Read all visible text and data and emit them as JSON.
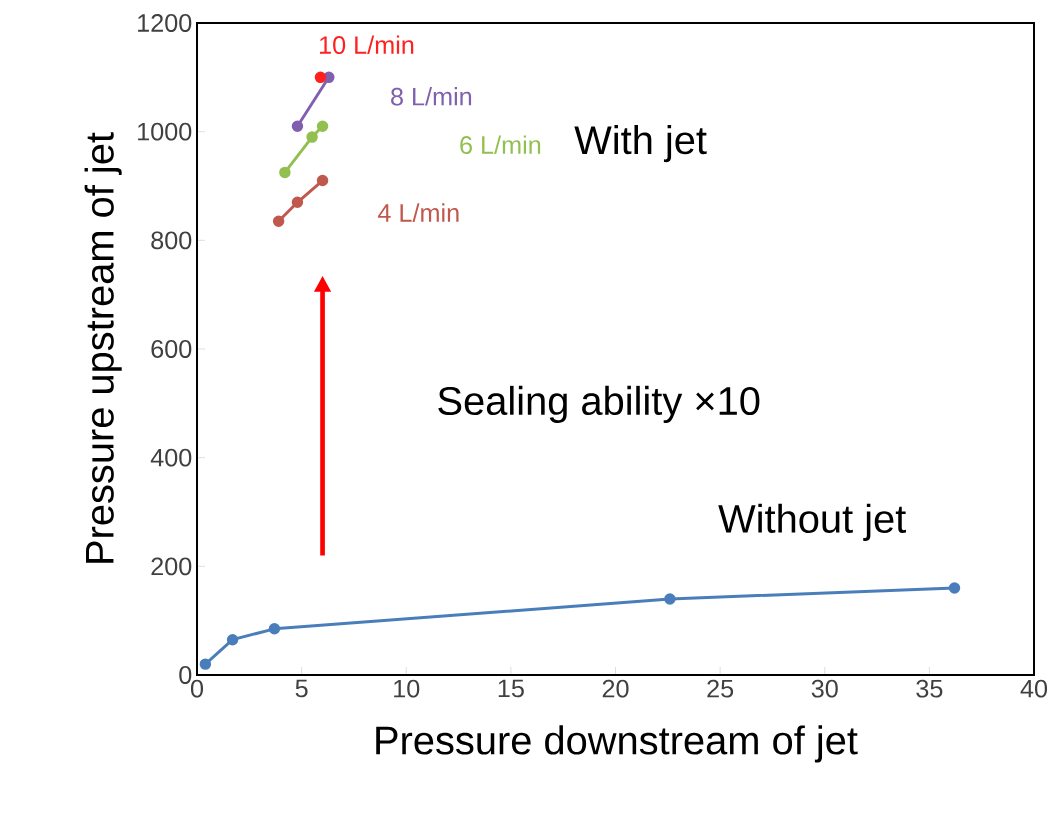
{
  "chart_data": {
    "type": "line",
    "xlabel": "Pressure downstream of jet",
    "ylabel": "Pressure upstream of jet",
    "xlim": [
      0,
      40
    ],
    "ylim": [
      0,
      1200
    ],
    "xticks": [
      0,
      5,
      10,
      15,
      20,
      25,
      30,
      35,
      40
    ],
    "yticks": [
      0,
      200,
      400,
      600,
      800,
      1000,
      1200
    ],
    "marker": "circle",
    "line_style": "solid",
    "grid": false,
    "annotations": [
      "With jet",
      "Sealing ability ×10"
    ],
    "series": [
      {
        "name": "Without jet",
        "color": "#4a7ebb",
        "x": [
          0.4,
          1.7,
          3.7,
          22.6,
          36.2
        ],
        "values": [
          20,
          65,
          85,
          140,
          160
        ]
      },
      {
        "name": "4 L/min",
        "color": "#c0584d",
        "x": [
          3.9,
          4.8,
          6.0
        ],
        "values": [
          835,
          870,
          910
        ]
      },
      {
        "name": "6 L/min",
        "color": "#92c050",
        "x": [
          4.2,
          5.5,
          6.0
        ],
        "values": [
          925,
          990,
          1010
        ]
      },
      {
        "name": "8 L/min",
        "color": "#7f5fae",
        "x": [
          4.8,
          6.3
        ],
        "values": [
          1010,
          1100
        ]
      },
      {
        "name": "10 L/min",
        "color": "#ff2020",
        "x": [
          5.9
        ],
        "values": [
          1100
        ]
      }
    ]
  }
}
